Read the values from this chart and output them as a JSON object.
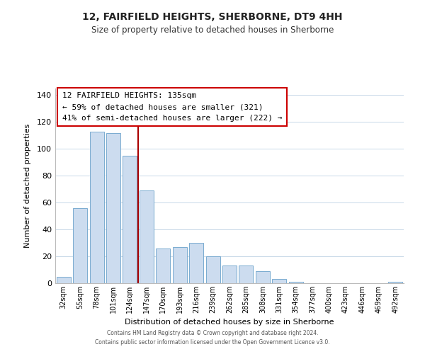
{
  "title": "12, FAIRFIELD HEIGHTS, SHERBORNE, DT9 4HH",
  "subtitle": "Size of property relative to detached houses in Sherborne",
  "xlabel": "Distribution of detached houses by size in Sherborne",
  "ylabel": "Number of detached properties",
  "bar_labels": [
    "32sqm",
    "55sqm",
    "78sqm",
    "101sqm",
    "124sqm",
    "147sqm",
    "170sqm",
    "193sqm",
    "216sqm",
    "239sqm",
    "262sqm",
    "285sqm",
    "308sqm",
    "331sqm",
    "354sqm",
    "377sqm",
    "400sqm",
    "423sqm",
    "446sqm",
    "469sqm",
    "492sqm"
  ],
  "bar_values": [
    5,
    56,
    113,
    112,
    95,
    69,
    26,
    27,
    30,
    20,
    13,
    13,
    9,
    3,
    1,
    0,
    0,
    0,
    0,
    0,
    1
  ],
  "bar_color": "#ccdcef",
  "bar_edge_color": "#7aabd0",
  "vline_x": 4.5,
  "vline_color": "#aa0000",
  "ylim": [
    0,
    145
  ],
  "yticks": [
    0,
    20,
    40,
    60,
    80,
    100,
    120,
    140
  ],
  "annotation_title": "12 FAIRFIELD HEIGHTS: 135sqm",
  "annotation_line1": "← 59% of detached houses are smaller (321)",
  "annotation_line2": "41% of semi-detached houses are larger (222) →",
  "annotation_box_color": "#ffffff",
  "annotation_box_edge": "#cc0000",
  "footer_line1": "Contains HM Land Registry data © Crown copyright and database right 2024.",
  "footer_line2": "Contains public sector information licensed under the Open Government Licence v3.0.",
  "background_color": "#ffffff",
  "grid_color": "#c8d8e8"
}
